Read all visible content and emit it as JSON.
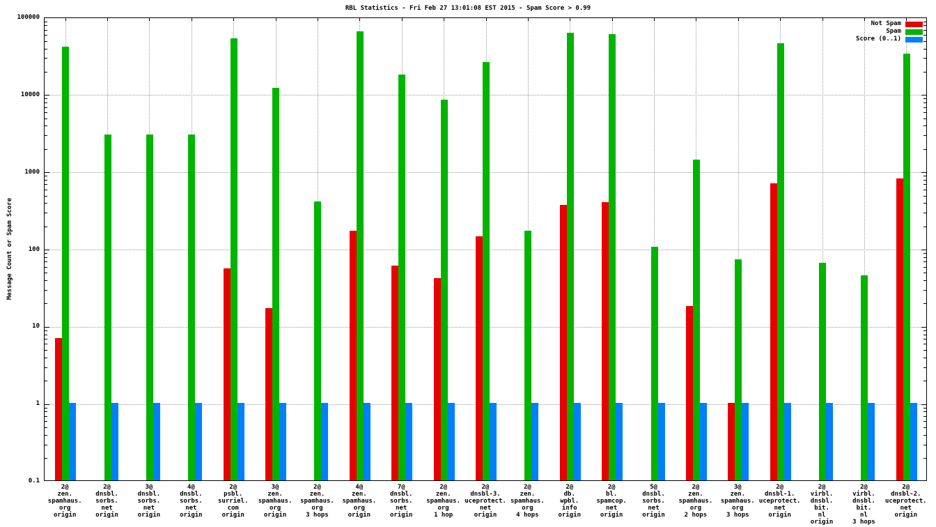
{
  "chart_data": {
    "type": "bar",
    "title": "RBL Statistics - Fri Feb 27 13:01:08 EST 2015 - Spam Score > 0.99",
    "ylabel": "Message Count or Spam Score",
    "xlabel": "",
    "yscale": "log",
    "ylim": [
      0.1,
      100000
    ],
    "grid": true,
    "legend_position": "top-right",
    "ytick_labels": [
      "0.1",
      "1",
      "10",
      "100",
      "1000",
      "10000",
      "100000"
    ],
    "categories": [
      [
        "2@",
        "zen.",
        "spamhaus.",
        "org",
        "origin"
      ],
      [
        "2@",
        "dnsbl.",
        "sorbs.",
        "net",
        "origin"
      ],
      [
        "3@",
        "dnsbl.",
        "sorbs.",
        "net",
        "origin"
      ],
      [
        "4@",
        "dnsbl.",
        "sorbs.",
        "net",
        "origin"
      ],
      [
        "2@",
        "psbl.",
        "surriel.",
        "com",
        "origin"
      ],
      [
        "3@",
        "zen.",
        "spamhaus.",
        "org",
        "origin"
      ],
      [
        "2@",
        "zen.",
        "spamhaus.",
        "org",
        "3 hops"
      ],
      [
        "4@",
        "zen.",
        "spamhaus.",
        "org",
        "origin"
      ],
      [
        "7@",
        "dnsbl.",
        "sorbs.",
        "net",
        "origin"
      ],
      [
        "2@",
        "zen.",
        "spamhaus.",
        "org",
        "1 hop"
      ],
      [
        "2@",
        "dnsbl-3.",
        "uceprotect.",
        "net",
        "origin"
      ],
      [
        "2@",
        "zen.",
        "spamhaus.",
        "org",
        "4 hops"
      ],
      [
        "2@",
        "db.",
        "wpbl.",
        "info",
        "origin"
      ],
      [
        "2@",
        "bl.",
        "spamcop.",
        "net",
        "origin"
      ],
      [
        "5@",
        "dnsbl.",
        "sorbs.",
        "net",
        "origin"
      ],
      [
        "2@",
        "zen.",
        "spamhaus.",
        "org",
        "2 hops"
      ],
      [
        "3@",
        "zen.",
        "spamhaus.",
        "org",
        "3 hops"
      ],
      [
        "2@",
        "dnsbl-1.",
        "uceprotect.",
        "net",
        "origin"
      ],
      [
        "2@",
        "virbl.",
        "dnsbl.",
        "bit.",
        "nl",
        "origin"
      ],
      [
        "2@",
        "virbl.",
        "dnsbl.",
        "bit.",
        "nl",
        "3 hops"
      ],
      [
        "2@",
        "dnsbl-2.",
        "uceprotect.",
        "net",
        "origin"
      ]
    ],
    "series": [
      {
        "name": "Not Spam",
        "color": "#e80000",
        "values": [
          7,
          null,
          null,
          null,
          55,
          17,
          null,
          170,
          60,
          41,
          145,
          null,
          370,
          400,
          null,
          18,
          1,
          700,
          null,
          null,
          800
        ]
      },
      {
        "name": "Spam",
        "color": "#00b400",
        "values": [
          41000,
          3000,
          3000,
          3000,
          53000,
          12000,
          410,
          64000,
          18000,
          8500,
          26000,
          170,
          62000,
          60000,
          105,
          1400,
          73,
          45000,
          65,
          45,
          33000
        ]
      },
      {
        "name": "Score (0..1)",
        "color": "#0080ff",
        "values": [
          1,
          1,
          1,
          1,
          1,
          1,
          1,
          1,
          1,
          1,
          1,
          1,
          1,
          1,
          1,
          1,
          1,
          1,
          1,
          1,
          1
        ]
      }
    ]
  }
}
